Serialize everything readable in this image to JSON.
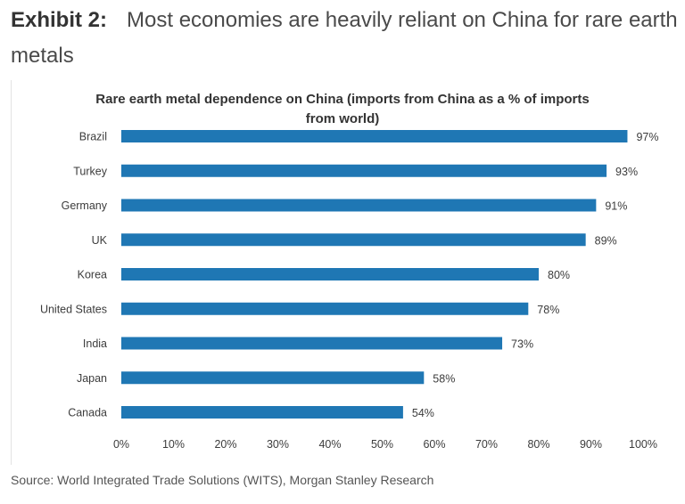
{
  "header": {
    "exhibit_label": "Exhibit 2:",
    "title": "Most economies are heavily reliant on China for rare earth metals"
  },
  "source": {
    "text": "Source: World Integrated Trade Solutions (WITS), Morgan Stanley Research"
  },
  "colors": {
    "bar": "#1f77b4",
    "text": "#3c3c3c"
  },
  "chart_data": {
    "type": "bar",
    "orientation": "horizontal",
    "title_lines": [
      "Rare earth metal dependence on China (imports from China as a % of imports",
      "from world)"
    ],
    "categories": [
      "Brazil",
      "Turkey",
      "Germany",
      "UK",
      "Korea",
      "United States",
      "India",
      "Japan",
      "Canada"
    ],
    "values": [
      97,
      93,
      91,
      89,
      80,
      78,
      73,
      58,
      54
    ],
    "value_labels": [
      "97%",
      "93%",
      "91%",
      "89%",
      "80%",
      "78%",
      "73%",
      "58%",
      "54%"
    ],
    "xlim": [
      0,
      100
    ],
    "x_ticks": [
      0,
      10,
      20,
      30,
      40,
      50,
      60,
      70,
      80,
      90,
      100
    ],
    "x_tick_labels": [
      "0%",
      "10%",
      "20%",
      "30%",
      "40%",
      "50%",
      "60%",
      "70%",
      "80%",
      "90%",
      "100%"
    ],
    "grid": false,
    "legend": "none"
  }
}
